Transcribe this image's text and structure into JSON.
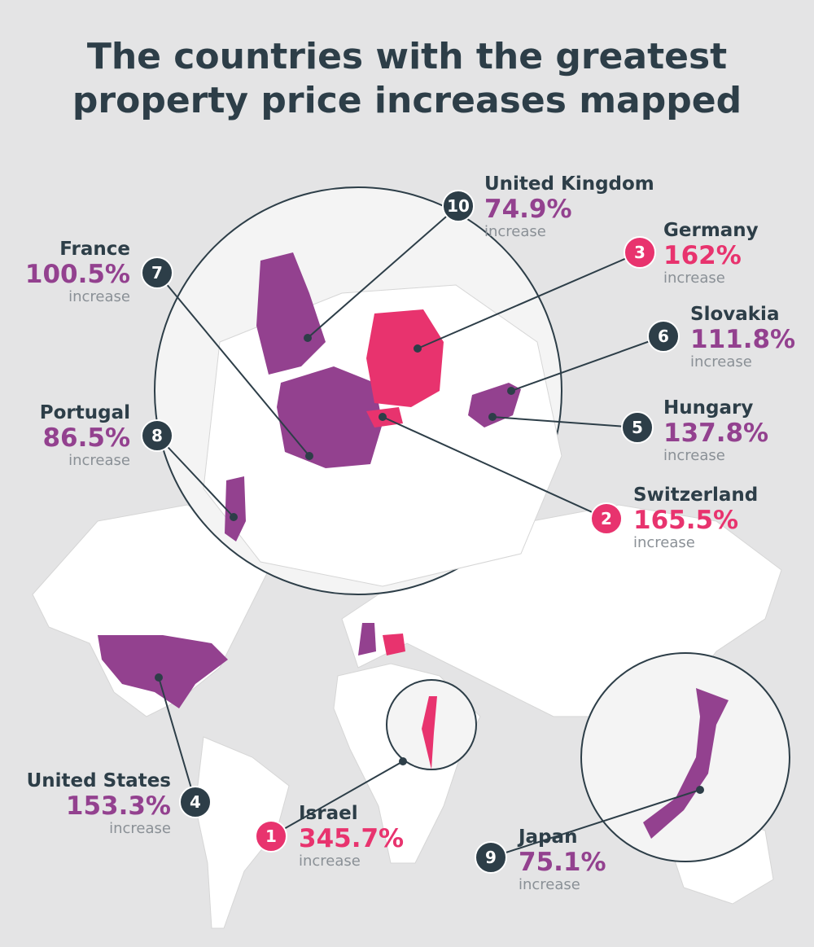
{
  "title": [
    "The countries with the greatest",
    "property price increases mapped"
  ],
  "labels": [
    {
      "rank": 10,
      "country": "United Kingdom",
      "value": "74.9%",
      "note": "increase",
      "color": "#93418f"
    },
    {
      "rank": 3,
      "country": "Germany",
      "value": "162%",
      "note": "increase",
      "color": "#e8336e"
    },
    {
      "rank": 6,
      "country": "Slovakia",
      "value": "111.8%",
      "note": "increase",
      "color": "#93418f"
    },
    {
      "rank": 5,
      "country": "Hungary",
      "value": "137.8%",
      "note": "increase",
      "color": "#93418f"
    },
    {
      "rank": 2,
      "country": "Switzerland",
      "value": "165.5%",
      "note": "increase",
      "color": "#e8336e"
    },
    {
      "rank": 7,
      "country": "France",
      "value": "100.5%",
      "note": "increase",
      "color": "#93418f"
    },
    {
      "rank": 8,
      "country": "Portugal",
      "value": "86.5%",
      "note": "increase",
      "color": "#93418f"
    },
    {
      "rank": 4,
      "country": "United States",
      "value": "153.3%",
      "note": "increase",
      "color": "#93418f"
    },
    {
      "rank": 1,
      "country": "Israel",
      "value": "345.7%",
      "note": "increase",
      "color": "#e8336e"
    },
    {
      "rank": 9,
      "country": "Japan",
      "value": "75.1%",
      "note": "increase",
      "color": "#93418f"
    }
  ]
}
